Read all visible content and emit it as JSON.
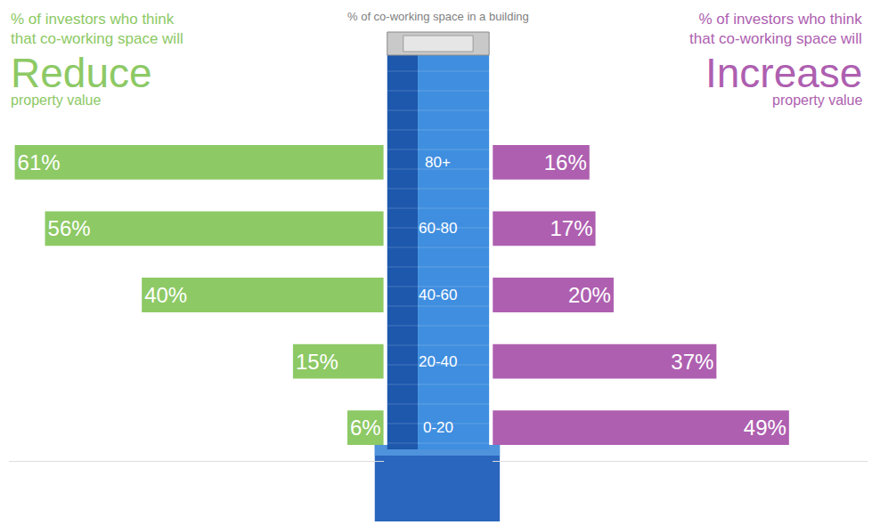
{
  "chart_data": {
    "type": "bar",
    "orientation": "horizontal",
    "title": "% of co-working space in a building",
    "categories": [
      "80+",
      "60-80",
      "40-60",
      "20-40",
      "0-20"
    ],
    "xlim": [
      0,
      62
    ],
    "data_labels": true,
    "tick_labels": false,
    "series": [
      {
        "name": "Reduce",
        "heading": "% of investors who think that co-working space will",
        "caption": "property value",
        "color": "#8dc965",
        "values": [
          61,
          56,
          40,
          15,
          6
        ],
        "value_labels": [
          "61%",
          "56%",
          "40%",
          "15%",
          "6%"
        ]
      },
      {
        "name": "Increase",
        "heading": "% of investors who think that co-working space will",
        "caption": "property value",
        "color": "#ae5fb0",
        "values": [
          16,
          17,
          20,
          37,
          49
        ],
        "value_labels": [
          "16%",
          "17%",
          "20%",
          "37%",
          "49%"
        ]
      }
    ]
  }
}
